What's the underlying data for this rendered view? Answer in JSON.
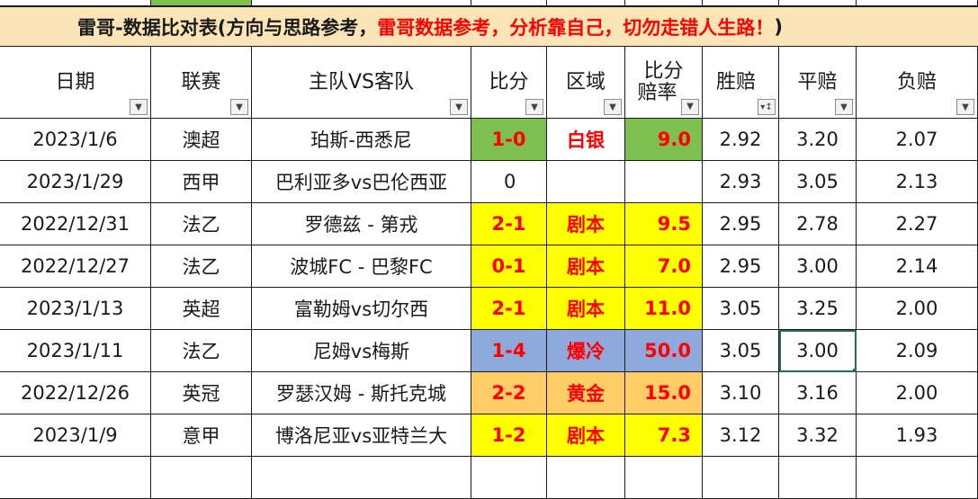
{
  "title": {
    "part1": "雷哥-数据比对表(方向与思路参考，",
    "part2": "雷哥数据参考，分析靠自己，切勿走错人生路！",
    "part3": ")"
  },
  "headers": {
    "date": "日期",
    "league": "联赛",
    "match": "主队VS客队",
    "score": "比分",
    "zone": "区域",
    "odds_line1": "比分",
    "odds_line2": "赔率",
    "win": "胜赔",
    "draw": "平赔",
    "lose": "负赔"
  },
  "filter_icons": {
    "default": "▼",
    "sorted": "▾↕"
  },
  "rows": [
    {
      "date": "2023/1/6",
      "league": "澳超",
      "match": "珀斯-西悉尼",
      "score": "1-0",
      "zone": "白银",
      "odds": "9.0",
      "win": "2.92",
      "draw": "3.20",
      "lose": "2.07",
      "color": "#7ec050"
    },
    {
      "date": "2023/1/29",
      "league": "西甲",
      "match": "巴利亚多vs巴伦西亚",
      "score": "0",
      "zone": "",
      "odds": "",
      "win": "2.93",
      "draw": "3.05",
      "lose": "2.13",
      "color": ""
    },
    {
      "date": "2022/12/31",
      "league": "法乙",
      "match": "罗德兹 - 第戎",
      "score": "2-1",
      "zone": "剧本",
      "odds": "9.5",
      "win": "2.95",
      "draw": "2.78",
      "lose": "2.27",
      "color": "#ffff00"
    },
    {
      "date": "2022/12/27",
      "league": "法乙",
      "match": "波城FC - 巴黎FC",
      "score": "0-1",
      "zone": "剧本",
      "odds": "7.0",
      "win": "2.95",
      "draw": "3.00",
      "lose": "2.14",
      "color": "#ffff00"
    },
    {
      "date": "2023/1/13",
      "league": "英超",
      "match": "富勒姆vs切尔西",
      "score": "2-1",
      "zone": "剧本",
      "odds": "11.0",
      "win": "3.05",
      "draw": "3.25",
      "lose": "2.00",
      "color": "#ffff00"
    },
    {
      "date": "2023/1/11",
      "league": "法乙",
      "match": "尼姆vs梅斯",
      "score": "1-4",
      "zone": "爆冷",
      "odds": "50.0",
      "win": "3.05",
      "draw": "3.00",
      "lose": "2.09",
      "color": "#8ea9db",
      "selected": true
    },
    {
      "date": "2022/12/26",
      "league": "英冠",
      "match": "罗瑟汉姆 - 斯托克城",
      "score": "2-2",
      "zone": "黄金",
      "odds": "15.0",
      "win": "3.10",
      "draw": "3.16",
      "lose": "2.00",
      "color": "#ffcc66"
    },
    {
      "date": "2023/1/9",
      "league": "意甲",
      "match": "博洛尼亚vs亚特兰大",
      "score": "1-2",
      "zone": "剧本",
      "odds": "7.3",
      "win": "3.12",
      "draw": "3.32",
      "lose": "1.93",
      "color": "#ffff00"
    }
  ]
}
